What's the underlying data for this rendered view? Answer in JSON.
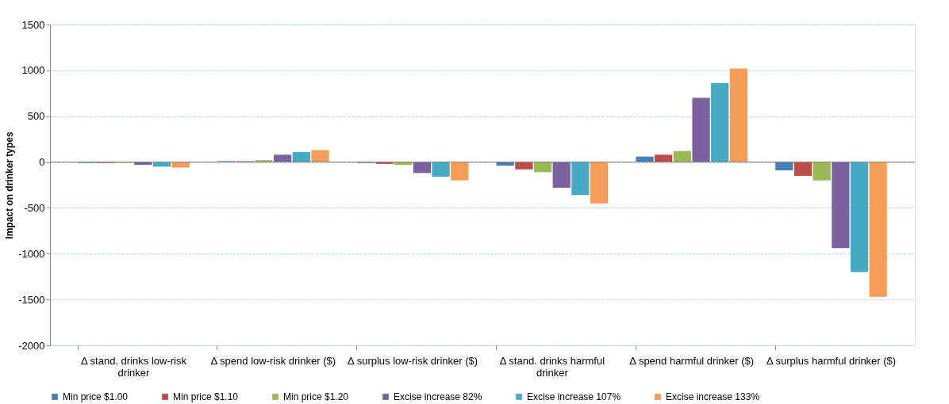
{
  "chart_data": {
    "type": "bar",
    "ylabel": "Impact on drinker types",
    "categories": [
      "Δ stand. drinks low-risk drinker",
      "Δ spend low-risk drinker ($)",
      "Δ surplus low-risk drinker ($)",
      "Δ stand. drinks harmful drinker",
      "Δ spend harmful drinker ($)",
      "Δ  surplus harmful drinker ($)"
    ],
    "series": [
      {
        "name": "Min price $1.00",
        "color": "#4a7ebb",
        "values": [
          -10,
          10,
          -10,
          -40,
          60,
          -90
        ]
      },
      {
        "name": "Min price $1.10",
        "color": "#be4b48",
        "values": [
          -10,
          10,
          -20,
          -80,
          80,
          -150
        ]
      },
      {
        "name": "Min price $1.20",
        "color": "#98b954",
        "values": [
          -10,
          20,
          -30,
          -110,
          120,
          -200
        ]
      },
      {
        "name": "Excise increase 82%",
        "color": "#7d60a0",
        "values": [
          -30,
          80,
          -120,
          -280,
          700,
          -940
        ]
      },
      {
        "name": "Excise increase 107%",
        "color": "#46aac5",
        "values": [
          -50,
          110,
          -160,
          -360,
          860,
          -1200
        ]
      },
      {
        "name": "Excise increase 133%",
        "color": "#f59d56",
        "values": [
          -60,
          130,
          -200,
          -450,
          1020,
          -1470
        ]
      }
    ],
    "ylim": [
      -2000,
      1500
    ],
    "yticks": [
      -2000,
      -1500,
      -1000,
      -500,
      0,
      500,
      1000,
      1500
    ],
    "grid": "y",
    "legend": "bottom"
  }
}
